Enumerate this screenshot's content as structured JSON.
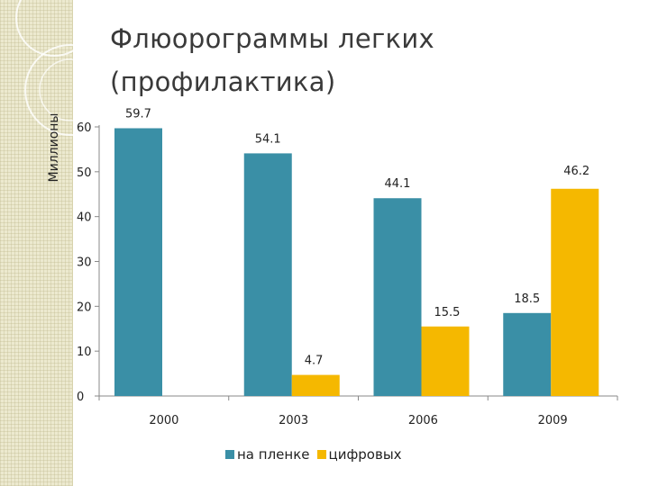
{
  "slide": {
    "title_line1": "Флюорограммы легких",
    "title_line2": "(профилактика)"
  },
  "colors": {
    "series1": "#3a8fa6",
    "series2": "#f5b800",
    "background_strip": "#ece9cf"
  },
  "chart_data": {
    "type": "bar",
    "title": "",
    "xlabel": "",
    "ylabel": "Миллионы",
    "categories": [
      "2000",
      "2003",
      "2006",
      "2009"
    ],
    "series": [
      {
        "name": "на пленке",
        "values": [
          59.7,
          54.1,
          44.1,
          18.5
        ]
      },
      {
        "name": "цифровых",
        "values": [
          null,
          4.7,
          15.5,
          46.2
        ]
      }
    ],
    "ylim": [
      0,
      60
    ],
    "yticks": [
      0,
      10,
      20,
      30,
      40,
      50,
      60
    ],
    "grid": false,
    "legend_position": "bottom"
  }
}
